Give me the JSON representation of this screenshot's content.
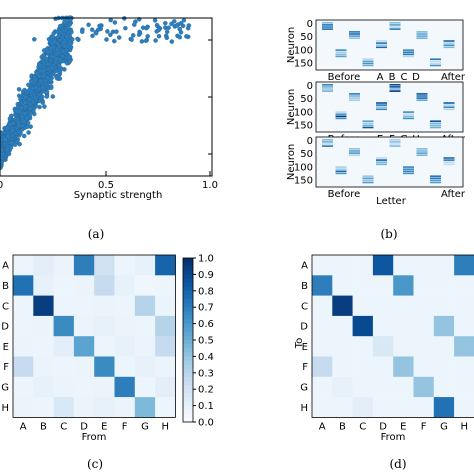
{
  "captions": {
    "a": "(a)",
    "b": "(b)",
    "c": "(c)",
    "d": "(d)"
  },
  "colors": {
    "point": "#2f7ebc",
    "high": "#08306b",
    "low": "#f7fbff"
  },
  "chart_data": [
    {
      "type": "scatter",
      "panel": "a",
      "xlabel": "Synaptic strength",
      "xlim": [
        0,
        1.0
      ],
      "xticks": [
        "0",
        "0.5",
        "1.0"
      ],
      "n_points": 1500,
      "trend": "positive, increasing spread, saturating near top of axis"
    },
    {
      "type": "heatmap",
      "panel": "b",
      "ylabel": "Neuron",
      "xlabel": "Letter",
      "yticks": [
        "0",
        "50",
        "100",
        "150"
      ],
      "rows": [
        {
          "before": "Before",
          "letters": [
            "A",
            "B",
            "C",
            "D"
          ],
          "after": "After",
          "active": [
            0.33,
            0.45,
            0.55,
            0.62
          ]
        },
        {
          "before": "Before",
          "letters": [
            "E",
            "F",
            "G",
            "H"
          ],
          "after": "After",
          "active": [
            0.33,
            0.45,
            0.55,
            0.62
          ]
        },
        {
          "before": "Before",
          "letters": [],
          "after": "After",
          "active": [
            0.33,
            0.45,
            0.55,
            0.62
          ]
        }
      ]
    },
    {
      "type": "heatmap",
      "panel": "c",
      "xlabel": "From",
      "ylabel": "",
      "labels": [
        "A",
        "B",
        "C",
        "D",
        "E",
        "F",
        "G",
        "H"
      ],
      "values": [
        [
          0.05,
          0.1,
          0.06,
          0.7,
          0.2,
          0.05,
          0.08,
          0.8
        ],
        [
          0.75,
          0.08,
          0.05,
          0.06,
          0.25,
          0.08,
          0.04,
          0.05
        ],
        [
          0.05,
          0.95,
          0.05,
          0.05,
          0.06,
          0.05,
          0.3,
          0.06
        ],
        [
          0.05,
          0.06,
          0.65,
          0.06,
          0.08,
          0.06,
          0.05,
          0.3
        ],
        [
          0.06,
          0.05,
          0.1,
          0.55,
          0.05,
          0.08,
          0.06,
          0.25
        ],
        [
          0.25,
          0.06,
          0.05,
          0.06,
          0.65,
          0.05,
          0.08,
          0.06
        ],
        [
          0.05,
          0.08,
          0.06,
          0.05,
          0.06,
          0.7,
          0.05,
          0.1
        ],
        [
          0.06,
          0.05,
          0.15,
          0.06,
          0.08,
          0.06,
          0.45,
          0.05
        ]
      ],
      "colorbar": {
        "range": [
          0.0,
          1.0
        ],
        "ticks": [
          "0.0",
          "0.1",
          "0.2",
          "0.3",
          "0.4",
          "0.5",
          "0.6",
          "0.7",
          "0.8",
          "0.9",
          "1.0"
        ]
      }
    },
    {
      "type": "heatmap",
      "panel": "d",
      "xlabel": "From",
      "ylabel": "To",
      "labels": [
        "A",
        "B",
        "C",
        "D",
        "E",
        "F",
        "G",
        "H"
      ],
      "values": [
        [
          0.05,
          0.05,
          0.05,
          0.85,
          0.05,
          0.05,
          0.05,
          0.7
        ],
        [
          0.7,
          0.05,
          0.05,
          0.05,
          0.6,
          0.05,
          0.05,
          0.05
        ],
        [
          0.05,
          0.95,
          0.05,
          0.05,
          0.05,
          0.05,
          0.05,
          0.05
        ],
        [
          0.05,
          0.05,
          0.9,
          0.05,
          0.05,
          0.05,
          0.4,
          0.05
        ],
        [
          0.05,
          0.05,
          0.05,
          0.15,
          0.05,
          0.05,
          0.05,
          0.4
        ],
        [
          0.25,
          0.05,
          0.05,
          0.05,
          0.4,
          0.05,
          0.05,
          0.05
        ],
        [
          0.05,
          0.08,
          0.05,
          0.05,
          0.05,
          0.4,
          0.05,
          0.05
        ],
        [
          0.05,
          0.05,
          0.1,
          0.05,
          0.05,
          0.05,
          0.75,
          0.05
        ]
      ]
    }
  ]
}
